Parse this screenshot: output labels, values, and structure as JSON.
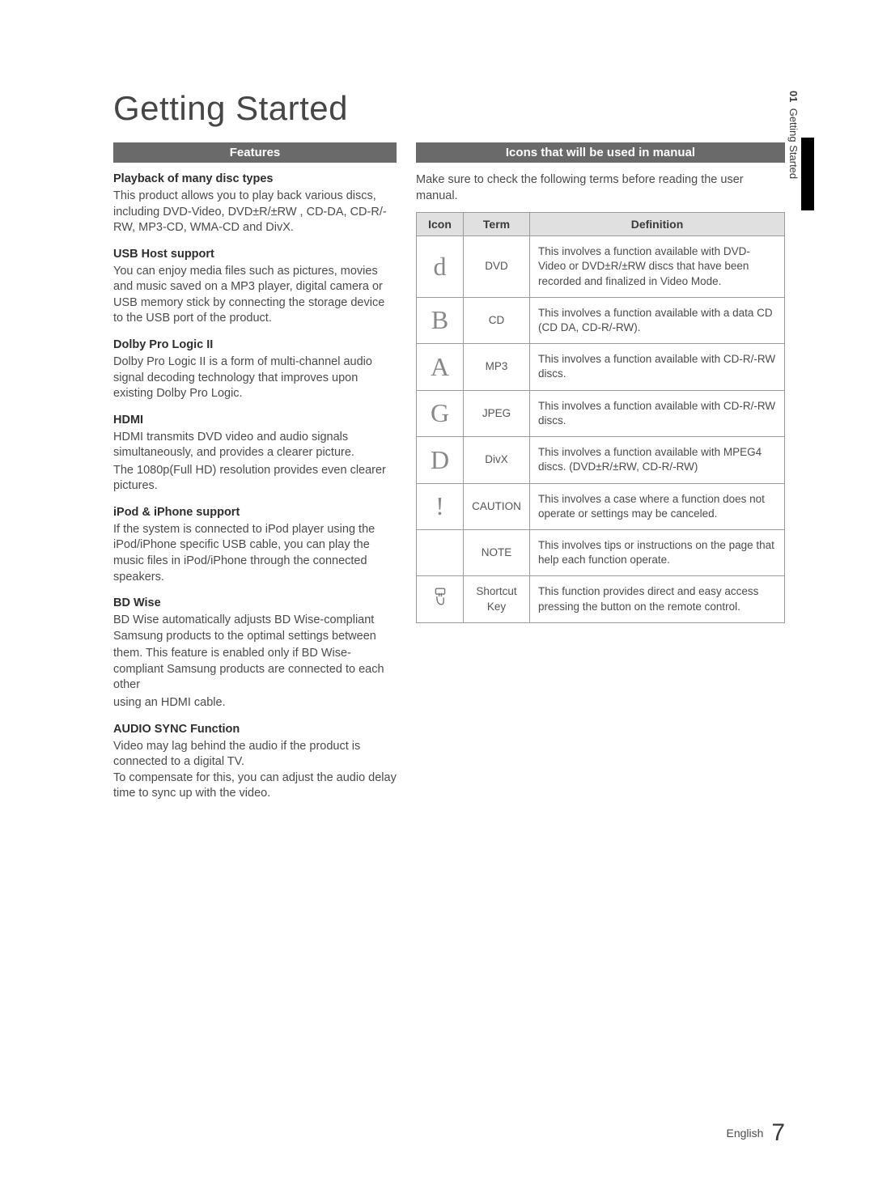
{
  "mainTitle": "Getting Started",
  "sideTab": {
    "num": "01",
    "label": "Getting Started"
  },
  "footer": {
    "lang": "English",
    "page": "7"
  },
  "left": {
    "header": "Features",
    "features": [
      {
        "title": "Playback of many disc types",
        "paras": [
          "This product allows you to play back various discs, including DVD-Video, DVD±R/±RW , CD-DA, CD-R/-RW, MP3-CD, WMA-CD and DivX."
        ]
      },
      {
        "title": "USB Host support",
        "paras": [
          "You can enjoy media files such as pictures, movies and music saved on a MP3 player, digital camera or USB memory stick by connecting the storage device to the USB port of the product."
        ]
      },
      {
        "title": "Dolby Pro Logic II",
        "paras": [
          "Dolby Pro Logic II is a form of multi-channel audio signal decoding technology that improves upon existing Dolby Pro Logic."
        ]
      },
      {
        "title": "HDMI",
        "paras": [
          "HDMI transmits DVD video and audio signals simultaneously, and provides a clearer picture.",
          "The 1080p(Full HD) resolution provides even clearer pictures."
        ]
      },
      {
        "title": "iPod & iPhone support",
        "paras": [
          "If the system is connected to iPod player using the iPod/iPhone specific USB cable, you can play the music files in iPod/iPhone through the connected speakers."
        ]
      },
      {
        "title": "BD Wise",
        "paras": [
          "BD Wise automatically adjusts BD Wise-compliant Samsung products to the optimal settings between",
          "them. This feature is enabled only if BD Wise-compliant Samsung products are connected to each other",
          "using an HDMI cable."
        ]
      },
      {
        "title": "AUDIO SYNC Function",
        "paras": [
          "Video may lag behind the audio if the product is connected to a digital TV.\nTo compensate for this, you can adjust the audio delay time to sync up with the video."
        ]
      }
    ]
  },
  "right": {
    "header": "Icons that will be used in manual",
    "intro": "Make sure to check the following terms before reading the user manual.",
    "tableHeaders": {
      "icon": "Icon",
      "term": "Term",
      "def": "Definition"
    },
    "rows": [
      {
        "icon": "d",
        "term": "DVD",
        "def": "This involves a function available with DVD-Video or DVD±R/±RW discs that have been recorded and finalized in Video Mode."
      },
      {
        "icon": "B",
        "term": "CD",
        "def": "This involves a function available with a data CD (CD DA, CD-R/-RW)."
      },
      {
        "icon": "A",
        "term": "MP3",
        "def": "This involves a function available with CD-R/-RW discs."
      },
      {
        "icon": "G",
        "term": "JPEG",
        "def": "This involves a function available with CD-R/-RW discs."
      },
      {
        "icon": "D",
        "term": "DivX",
        "def": "This involves a function available with MPEG4 discs. (DVD±R/±RW, CD-R/-RW)"
      },
      {
        "icon": "!",
        "term": "CAUTION",
        "def": "This involves a case where a function does not operate or settings may be canceled."
      },
      {
        "icon": "",
        "term": "NOTE",
        "def": "This involves tips or instructions on the page that help each function operate."
      },
      {
        "icon": "SVG",
        "term": "Shortcut Key",
        "def": "This function provides direct and easy access pressing the button on the remote control."
      }
    ]
  }
}
